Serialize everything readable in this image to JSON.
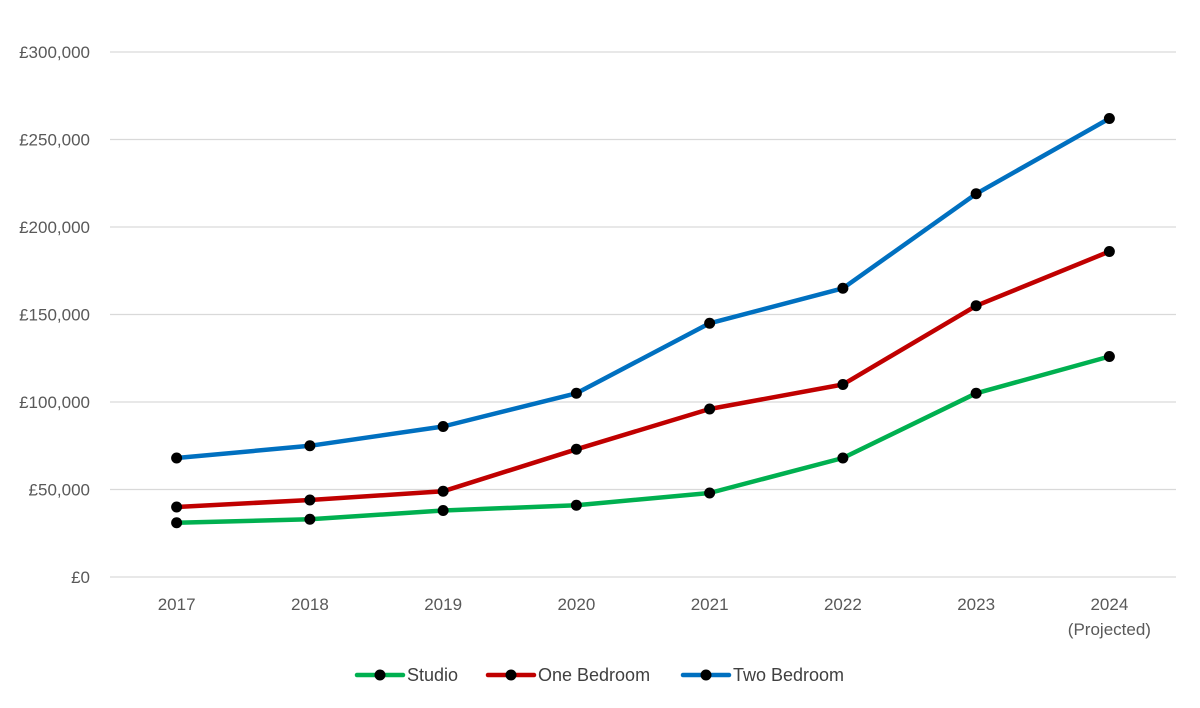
{
  "chart_data": {
    "type": "line",
    "title": "",
    "xlabel": "",
    "ylabel": "",
    "categories": [
      [
        "2017"
      ],
      [
        "2018"
      ],
      [
        "2019"
      ],
      [
        "2020"
      ],
      [
        "2021"
      ],
      [
        "2022"
      ],
      [
        "2023"
      ],
      [
        "2024",
        "(Projected)"
      ]
    ],
    "ylim": [
      0,
      300000
    ],
    "yticks": [
      0,
      50000,
      100000,
      150000,
      200000,
      250000,
      300000
    ],
    "ytick_labels": [
      "£0",
      "£50,000",
      "£100,000",
      "£150,000",
      "£200,000",
      "£250,000",
      "£300,000"
    ],
    "grid": true,
    "legend_position": "bottom",
    "marker_color": "#000000",
    "series": [
      {
        "name": "Studio",
        "color": "#00B050",
        "values": [
          31000,
          33000,
          38000,
          41000,
          48000,
          68000,
          105000,
          126000
        ]
      },
      {
        "name": "One Bedroom",
        "color": "#C00000",
        "values": [
          40000,
          44000,
          49000,
          73000,
          96000,
          110000,
          155000,
          186000
        ]
      },
      {
        "name": "Two Bedroom",
        "color": "#0070C0",
        "values": [
          68000,
          75000,
          86000,
          105000,
          145000,
          165000,
          219000,
          262000
        ]
      }
    ]
  }
}
